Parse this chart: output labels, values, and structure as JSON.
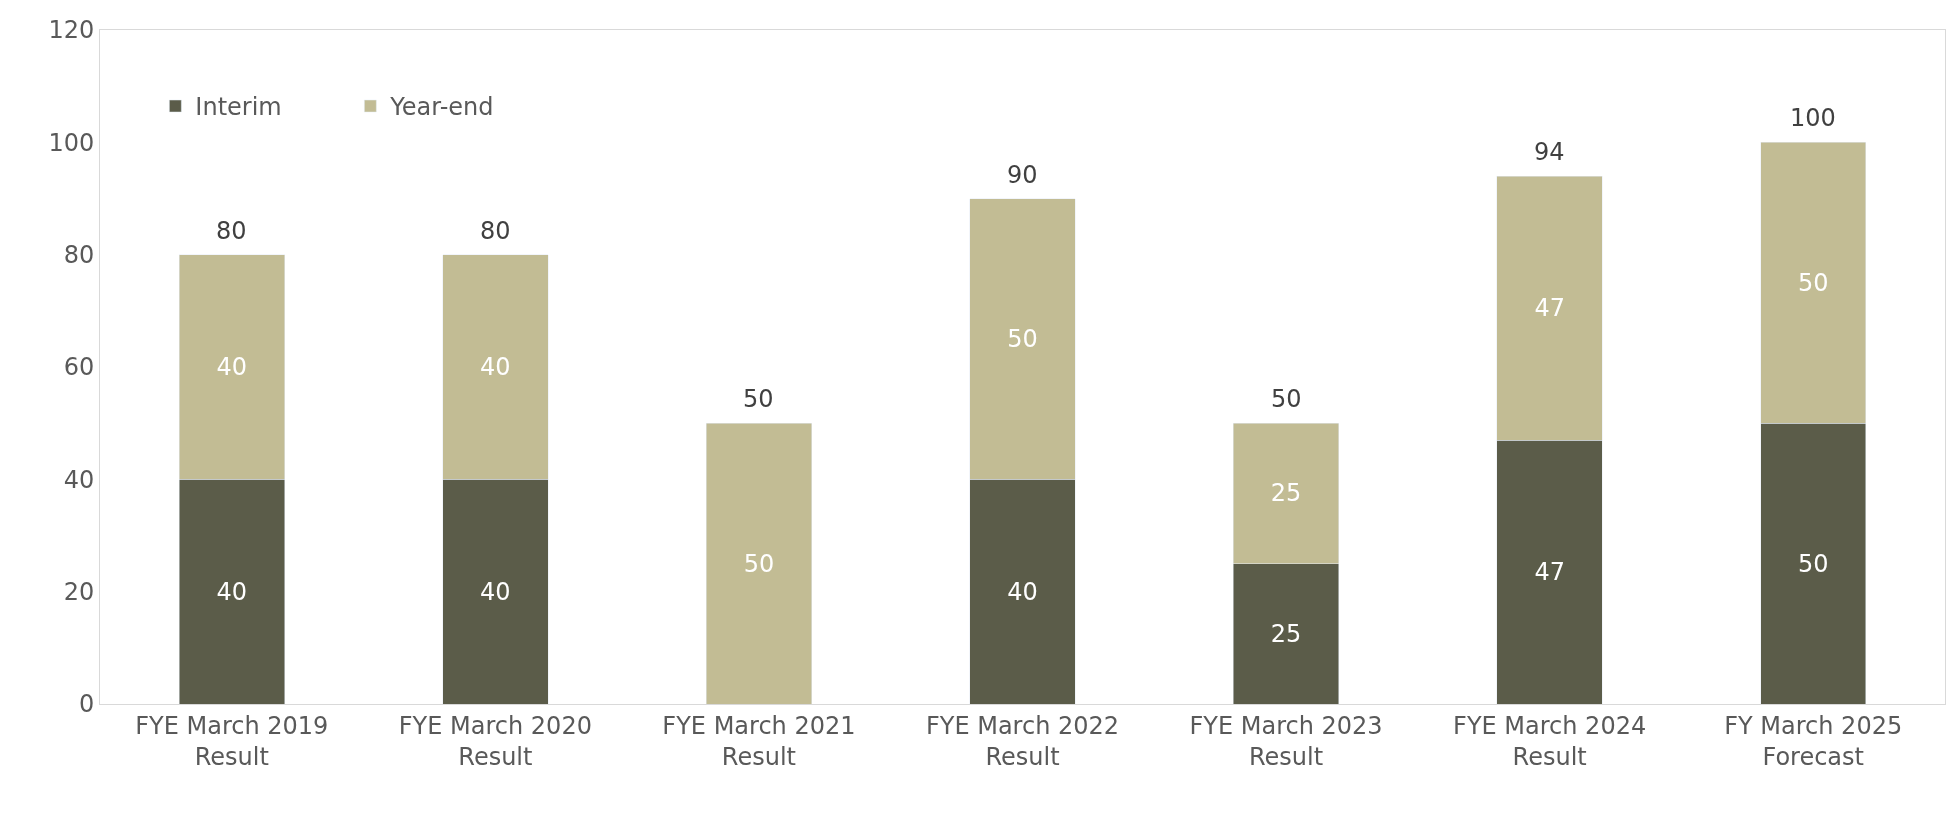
{
  "chart_data": {
    "type": "bar",
    "stacked": true,
    "categories": [
      "FYE March 2019\nResult",
      "FYE March 2020\nResult",
      "FYE March 2021\nResult",
      "FYE March 2022\nResult",
      "FYE March 2023\nResult",
      "FYE March 2024\nResult",
      "FY March 2025\nForecast"
    ],
    "series": [
      {
        "name": "Interim",
        "color": "#5b5c49",
        "values": [
          40,
          40,
          null,
          40,
          25,
          47,
          50
        ]
      },
      {
        "name": "Year-end",
        "color": "#c2bc94",
        "values": [
          40,
          40,
          50,
          50,
          25,
          47,
          50
        ]
      }
    ],
    "data_labels": true,
    "totals": [
      "80",
      "80",
      "50",
      "90",
      "50",
      "94",
      "100"
    ],
    "ylim": [
      0,
      120
    ],
    "yticks": [
      0,
      20,
      40,
      60,
      80,
      100,
      120
    ],
    "legend": "top left"
  }
}
